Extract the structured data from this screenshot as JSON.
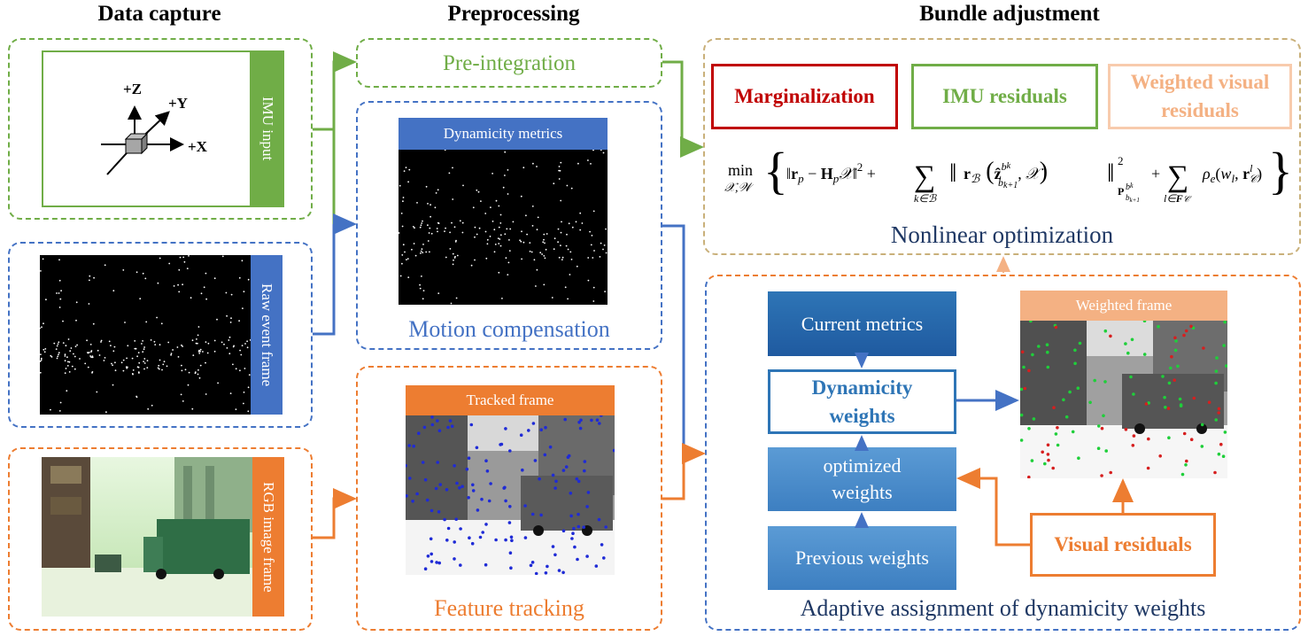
{
  "headers": {
    "data_capture": "Data capture",
    "preprocessing": "Preprocessing",
    "bundle_adjustment": "Bundle adjustment"
  },
  "inputs": {
    "imu_tab": "IMU input",
    "event_tab": "Raw event frame",
    "rgb_tab": "RGB image frame",
    "axes": {
      "z": "+Z",
      "y": "+Y",
      "x": "+X"
    }
  },
  "preprocessing": {
    "preintegration": "Pre-integration",
    "dynamicity_metrics": "Dynamicity metrics",
    "motion_compensation": "Motion compensation",
    "tracked_frame": "Tracked frame",
    "feature_tracking": "Feature tracking"
  },
  "bundle": {
    "marginalization": "Marginalization",
    "imu_residuals": "IMU residuals",
    "weighted_visual_residuals_1": "Weighted visual",
    "weighted_visual_residuals_2": "residuals",
    "nonlinear_optimization": "Nonlinear optimization"
  },
  "adaptive": {
    "current_metrics": "Current metrics",
    "dynamicity_weights_1": "Dynamicity",
    "dynamicity_weights_2": "weights",
    "optimized_weights_1": "optimized",
    "optimized_weights_2": "weights",
    "previous_weights": "Previous weights",
    "visual_residuals": "Visual residuals",
    "weighted_frame": "Weighted frame",
    "caption": "Adaptive assignment  of dynamicity weights"
  },
  "colors": {
    "green": "#70ad47",
    "blue": "#4472c4",
    "orange": "#ed7d31",
    "dark_red": "#c00000",
    "peach": "#f4b183",
    "button_blue": "#2e75b6"
  }
}
